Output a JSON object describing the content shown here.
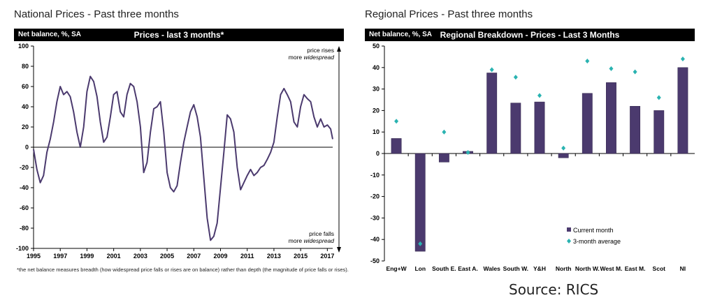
{
  "left_panel": {
    "heading": "National Prices - Past three months",
    "bar_left": "Net balance, %, SA",
    "bar_center": "Prices - last 3 months*",
    "annotation_top_1": "price rises",
    "annotation_top_2": "more ",
    "annotation_top_2_em": "widespread",
    "annotation_bottom_1": "price falls",
    "annotation_bottom_2": "more ",
    "annotation_bottom_2_em": "widespread",
    "footnote": "*the net balance measures breadth (how widespread price falls or rises are on balance) rather than depth (the magnitude of price falls or rises)."
  },
  "right_panel": {
    "heading": "Regional Prices - Past three months",
    "bar_left": "Net balance, %, SA",
    "bar_center": "Regional Breakdown - Prices - Last 3 Months"
  },
  "source": "Source: RICS",
  "colors": {
    "line": "#4b3a6e",
    "bar": "#4b3a6e",
    "diamond": "#2ab3b1",
    "axis": "#000000"
  },
  "chart_data": [
    {
      "type": "line",
      "title": "Prices - last 3 months*",
      "ylabel": "Net balance, %, SA",
      "xlabel": "",
      "ylim": [
        -100,
        100
      ],
      "xlim": [
        1995,
        2017.4
      ],
      "yticks": [
        -100,
        -80,
        -60,
        -40,
        -20,
        0,
        20,
        40,
        60,
        80,
        100
      ],
      "xticks": [
        1995,
        1997,
        1999,
        2001,
        2003,
        2005,
        2007,
        2009,
        2011,
        2013,
        2015,
        2017
      ],
      "grid": false,
      "series": [
        {
          "x": [
            1995.0,
            1995.25,
            1995.5,
            1995.75,
            1996.0,
            1996.25,
            1996.5,
            1996.75,
            1997.0,
            1997.25,
            1997.5,
            1997.75,
            1998.0,
            1998.25,
            1998.5,
            1998.75,
            1999.0,
            1999.25,
            1999.5,
            1999.75,
            2000.0,
            2000.25,
            2000.5,
            2000.75,
            2001.0,
            2001.25,
            2001.5,
            2001.75,
            2002.0,
            2002.25,
            2002.5,
            2002.75,
            2003.0,
            2003.25,
            2003.5,
            2003.75,
            2004.0,
            2004.25,
            2004.5,
            2004.75,
            2005.0,
            2005.25,
            2005.5,
            2005.75,
            2006.0,
            2006.25,
            2006.5,
            2006.75,
            2007.0,
            2007.25,
            2007.5,
            2007.75,
            2008.0,
            2008.25,
            2008.5,
            2008.75,
            2009.0,
            2009.25,
            2009.5,
            2009.75,
            2010.0,
            2010.25,
            2010.5,
            2010.75,
            2011.0,
            2011.25,
            2011.5,
            2011.75,
            2012.0,
            2012.25,
            2012.5,
            2012.75,
            2013.0,
            2013.25,
            2013.5,
            2013.75,
            2014.0,
            2014.25,
            2014.5,
            2014.75,
            2015.0,
            2015.25,
            2015.5,
            2015.75,
            2016.0,
            2016.25,
            2016.5,
            2016.75,
            2017.0,
            2017.25,
            2017.4
          ],
          "y": [
            -2,
            -22,
            -35,
            -28,
            -5,
            8,
            25,
            45,
            60,
            52,
            55,
            50,
            35,
            15,
            0,
            20,
            55,
            70,
            65,
            50,
            25,
            5,
            10,
            30,
            52,
            55,
            35,
            30,
            52,
            63,
            60,
            45,
            20,
            -25,
            -15,
            15,
            38,
            40,
            45,
            15,
            -25,
            -40,
            -44,
            -38,
            -15,
            5,
            20,
            35,
            42,
            30,
            10,
            -30,
            -70,
            -92,
            -88,
            -75,
            -40,
            -5,
            32,
            28,
            15,
            -20,
            -42,
            -35,
            -28,
            -22,
            -28,
            -25,
            -20,
            -18,
            -12,
            -5,
            5,
            30,
            52,
            58,
            52,
            45,
            25,
            20,
            40,
            52,
            48,
            45,
            30,
            20,
            28,
            20,
            22,
            18,
            8
          ]
        }
      ]
    },
    {
      "type": "bar",
      "title": "Regional Breakdown - Prices - Last 3 Months",
      "ylabel": "Net balance, %, SA",
      "xlabel": "",
      "ylim": [
        -50,
        50
      ],
      "yticks": [
        -50,
        -40,
        -30,
        -20,
        -10,
        0,
        10,
        20,
        30,
        40,
        50
      ],
      "grid": false,
      "legend": "bottom-left",
      "categories": [
        "Eng+W",
        "Lon",
        "South E.",
        "East A.",
        "Wales",
        "South W.",
        "Y&H",
        "North",
        "North W.",
        "West M.",
        "East M.",
        "Scot",
        "NI"
      ],
      "series": [
        {
          "name": "Current month",
          "kind": "bar",
          "values": [
            7,
            -45.5,
            -4,
            1,
            37.5,
            23.5,
            24,
            -2,
            28,
            33,
            22,
            20,
            40
          ]
        },
        {
          "name": "3-month average",
          "kind": "marker",
          "values": [
            15,
            -42,
            10,
            0.5,
            39,
            35.5,
            27,
            2.5,
            43,
            39.5,
            38,
            26,
            44
          ]
        }
      ]
    }
  ]
}
